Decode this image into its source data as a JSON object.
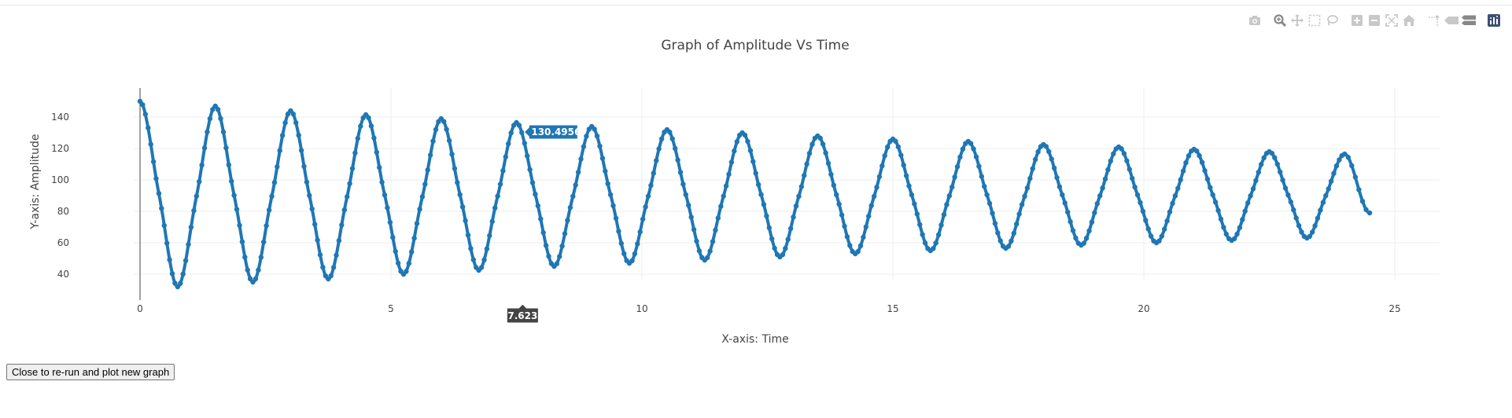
{
  "chart_data": {
    "type": "scatter",
    "mode": "lines+markers",
    "title": "Graph of Amplitude Vs Time",
    "xlabel": "X-axis: Time",
    "ylabel": "Y-axis: Amplitude",
    "xlim": [
      -0.3,
      26
    ],
    "ylim": [
      23,
      157
    ],
    "x_ticks": [
      0,
      5,
      10,
      15,
      20,
      25
    ],
    "y_ticks": [
      40,
      60,
      80,
      100,
      120,
      140
    ],
    "grid": true,
    "color": "#1f77b4",
    "hover": {
      "x_label": "7.623",
      "y_label": "130.4956",
      "x": 7.623,
      "y": 130.4956
    },
    "series": [
      {
        "points": [
          [
            0,
            150
          ],
          [
            0.375,
            91.4
          ],
          [
            0.75,
            32
          ],
          [
            1.125,
            89.7
          ],
          [
            1.5,
            147
          ],
          [
            1.875,
            90.2
          ],
          [
            2.25,
            35
          ],
          [
            2.625,
            89.6
          ],
          [
            3.0,
            144
          ],
          [
            3.375,
            90.1
          ],
          [
            3.75,
            37
          ],
          [
            4.125,
            89.3
          ],
          [
            4.5,
            141.5
          ],
          [
            4.875,
            90.4
          ],
          [
            5.25,
            40
          ],
          [
            5.625,
            89.3
          ],
          [
            6.0,
            139
          ],
          [
            6.375,
            90.6
          ],
          [
            6.75,
            42.5
          ],
          [
            7.125,
            89.7
          ],
          [
            7.5,
            136.5
          ],
          [
            7.875,
            90.9
          ],
          [
            8.25,
            45
          ],
          [
            8.625,
            89.6
          ],
          [
            9.0,
            134
          ],
          [
            9.375,
            90.6
          ],
          [
            9.75,
            47
          ],
          [
            10.125,
            89.7
          ],
          [
            10.5,
            132
          ],
          [
            10.875,
            90.6
          ],
          [
            11.25,
            49
          ],
          [
            11.625,
            89.7
          ],
          [
            12.0,
            130
          ],
          [
            12.375,
            90.7
          ],
          [
            12.75,
            51
          ],
          [
            13.125,
            89.6
          ],
          [
            13.5,
            128
          ],
          [
            13.875,
            90.6
          ],
          [
            14.25,
            53
          ],
          [
            14.625,
            89.5
          ],
          [
            15.0,
            126
          ],
          [
            15.375,
            90.5
          ],
          [
            15.75,
            55
          ],
          [
            16.125,
            89.9
          ],
          [
            16.5,
            124.5
          ],
          [
            16.875,
            90.5
          ],
          [
            17.25,
            56.5
          ],
          [
            17.625,
            89.6
          ],
          [
            18.0,
            122.5
          ],
          [
            18.375,
            90.5
          ],
          [
            18.75,
            58.5
          ],
          [
            19.125,
            89.9
          ],
          [
            19.5,
            121
          ],
          [
            19.875,
            90.5
          ],
          [
            20.25,
            60
          ],
          [
            20.625,
            89.9
          ],
          [
            21.0,
            119.5
          ],
          [
            21.375,
            90.5
          ],
          [
            21.75,
            61.5
          ],
          [
            22.125,
            89.9
          ],
          [
            22.5,
            118
          ],
          [
            22.875,
            90.4
          ],
          [
            23.25,
            63
          ],
          [
            23.625,
            90.0
          ],
          [
            24.0,
            116.5
          ],
          [
            24.5,
            79
          ]
        ]
      }
    ]
  },
  "toolbar": {
    "icons": [
      "camera-icon",
      "zoom-icon",
      "pan-icon",
      "box-select-icon",
      "lasso-icon",
      "zoom-in-icon",
      "zoom-out-icon",
      "autoscale-icon",
      "home-icon",
      "spike-lines-icon",
      "hover-closest-icon",
      "hover-compare-icon",
      "plotly-logo-icon"
    ],
    "colors": {
      "inactive": "#c8c8c8",
      "active": "#888888",
      "logo": "#3f4f75"
    }
  },
  "close_button": {
    "label": "Close to re-run and plot new graph"
  }
}
